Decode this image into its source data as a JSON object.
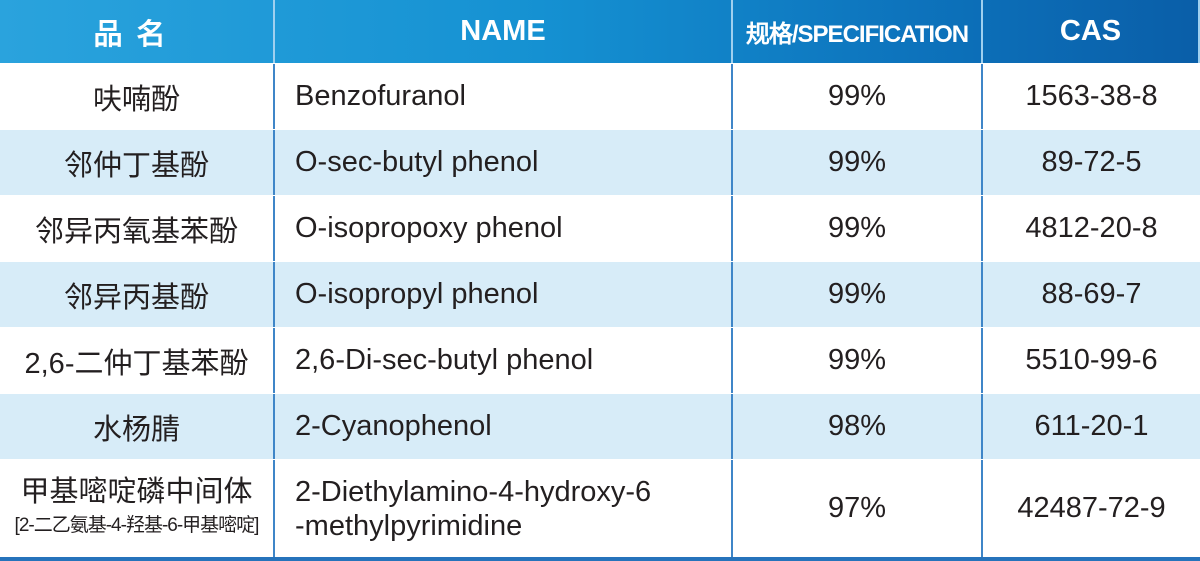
{
  "header": {
    "name_cn": "品名",
    "name": "NAME",
    "spec": "规格/SPECIFICATION",
    "cas": "CAS"
  },
  "colors": {
    "header_start": "#2aa3dd",
    "header_end": "#0a5ea8",
    "alt_row": "#d7ecf8",
    "divider": "#3f86c8"
  },
  "rows": [
    {
      "cn": "呋喃酚",
      "name": "Benzofuranol",
      "spec": "99%",
      "cas": "1563-38-8"
    },
    {
      "cn": "邻仲丁基酚",
      "name": "O-sec-butyl phenol",
      "spec": "99%",
      "cas": "89-72-5"
    },
    {
      "cn": "邻异丙氧基苯酚",
      "name": "O-isopropoxy phenol",
      "spec": "99%",
      "cas": "4812-20-8"
    },
    {
      "cn": "邻异丙基酚",
      "name": "O-isopropyl phenol",
      "spec": "99%",
      "cas": "88-69-7"
    },
    {
      "cn": "2,6-二仲丁基苯酚",
      "name": "2,6-Di-sec-butyl phenol",
      "spec": "99%",
      "cas": "5510-99-6"
    },
    {
      "cn": "水杨腈",
      "name": "2-Cyanophenol",
      "spec": "98%",
      "cas": "611-20-1"
    },
    {
      "cn": "甲基嘧啶磷中间体",
      "cn_sub": "[2-二乙氨基-4-羟基-6-甲基嘧啶]",
      "name": "2-Diethylamino-4-hydroxy-6",
      "name_line2": "-methylpyrimidine",
      "spec": "97%",
      "cas": "42487-72-9"
    }
  ]
}
